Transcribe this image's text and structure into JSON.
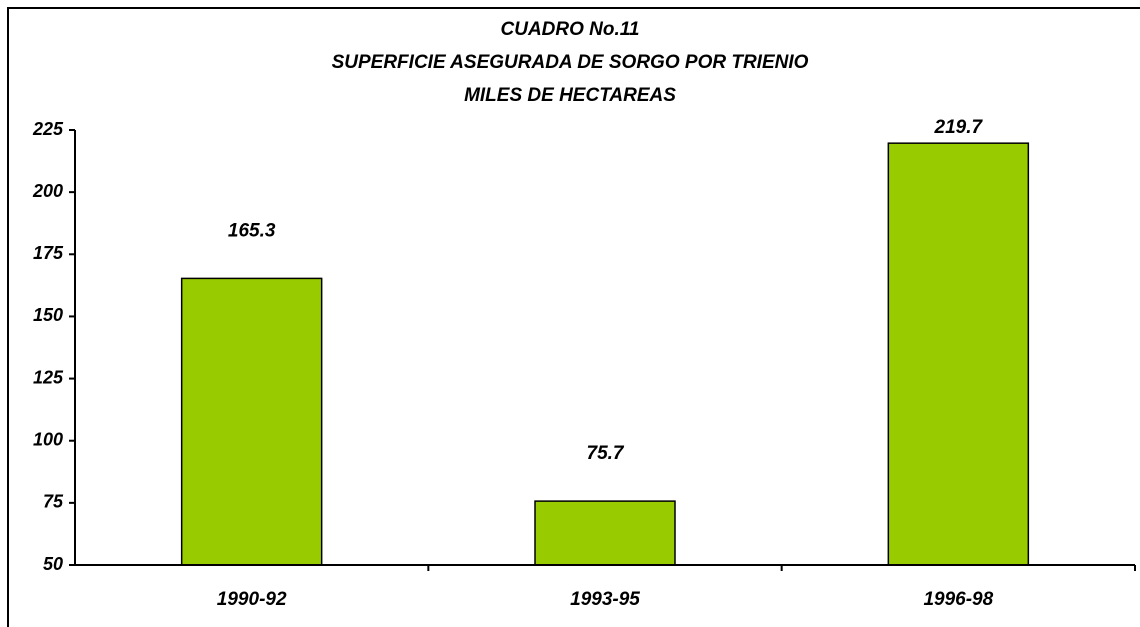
{
  "chart_data": {
    "type": "bar",
    "title": [
      "CUADRO No.11",
      "SUPERFICIE ASEGURADA DE SORGO POR TRIENIO",
      "MILES DE HECTAREAS"
    ],
    "categories": [
      "1990-92",
      "1993-95",
      "1996-98"
    ],
    "values": [
      165.3,
      75.7,
      219.7
    ],
    "color": "#99cc00",
    "ylim": [
      50,
      225
    ],
    "yticks": [
      50,
      75,
      100,
      125,
      150,
      175,
      200,
      225
    ]
  }
}
